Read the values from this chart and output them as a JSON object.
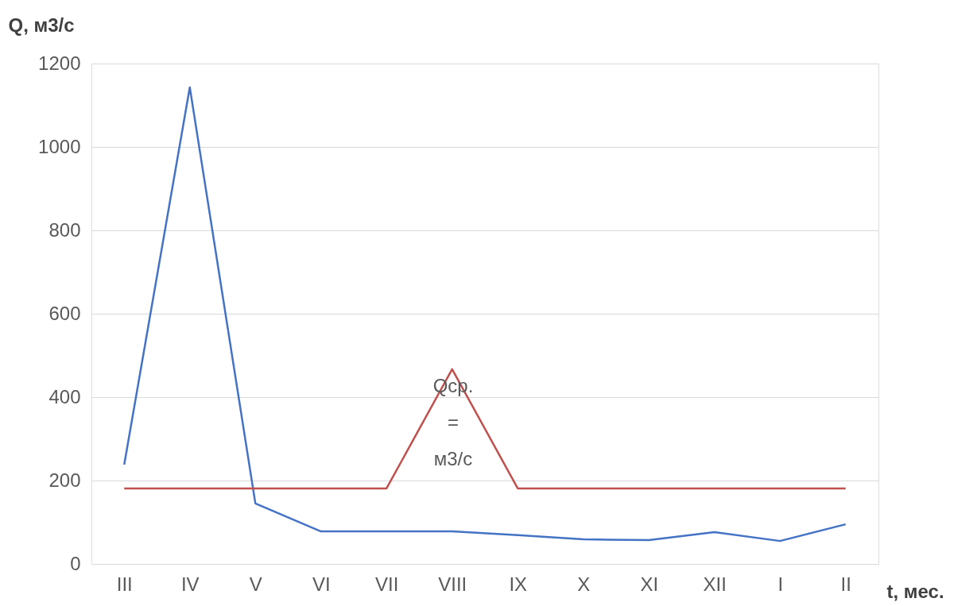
{
  "chart_data": {
    "type": "line",
    "xlabel": "t, мес.",
    "ylabel": "Q, м3/с",
    "categories": [
      "III",
      "IV",
      "V",
      "VI",
      "VII",
      "VIII",
      "IX",
      "X",
      "XI",
      "XII",
      "I",
      "II"
    ],
    "ylim": [
      0,
      1200
    ],
    "yticks": [
      0,
      200,
      400,
      600,
      800,
      1000,
      1200
    ],
    "series": [
      {
        "color": "#4472c4",
        "values": [
          238,
          1143,
          145,
          78,
          78,
          78,
          69,
          59,
          57,
          76,
          55,
          95
        ]
      },
      {
        "color": "#c0504d",
        "values": [
          181,
          181,
          181,
          181,
          181,
          467,
          181,
          181,
          181,
          181,
          181,
          181
        ]
      }
    ],
    "annotations": [
      "Qср. = м3/с"
    ],
    "grid": "y",
    "legend": false,
    "marker": "none",
    "line_style": "solid"
  }
}
